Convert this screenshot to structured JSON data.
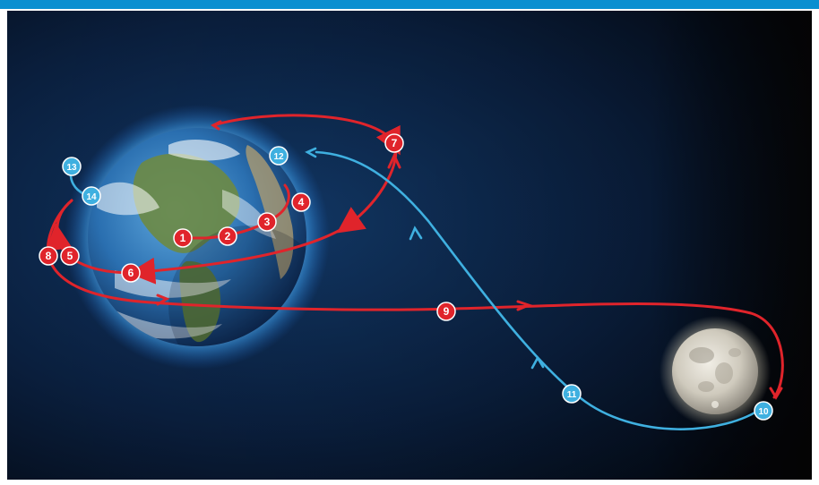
{
  "colors": {
    "top_bar": "#0a8fd0",
    "space_dark": "#020814",
    "space_blue": "#0d2a52",
    "outbound_red": "#e0242b",
    "return_blue": "#3fb0e0",
    "earth_ocean": "#2a79b8",
    "earth_land": "#5a7a3a",
    "moon": "#d9d6cc"
  },
  "icons": {
    "earth": "earth-globe",
    "moon": "full-moon"
  },
  "markers": [
    {
      "label": "1",
      "path": "outbound"
    },
    {
      "label": "2",
      "path": "outbound"
    },
    {
      "label": "3",
      "path": "outbound"
    },
    {
      "label": "4",
      "path": "outbound"
    },
    {
      "label": "5",
      "path": "outbound"
    },
    {
      "label": "6",
      "path": "outbound"
    },
    {
      "label": "7",
      "path": "outbound"
    },
    {
      "label": "8",
      "path": "outbound"
    },
    {
      "label": "9",
      "path": "outbound"
    },
    {
      "label": "10",
      "path": "return"
    },
    {
      "label": "11",
      "path": "return"
    },
    {
      "label": "12",
      "path": "return"
    },
    {
      "label": "13",
      "path": "return"
    },
    {
      "label": "14",
      "path": "return"
    }
  ]
}
